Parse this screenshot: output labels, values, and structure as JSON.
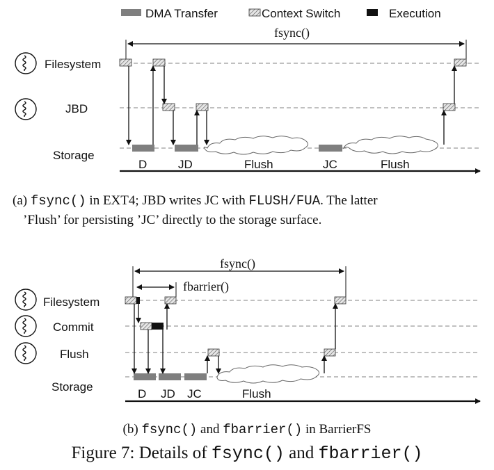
{
  "legend": {
    "dma": "DMA Transfer",
    "ctx": "Context Switch",
    "exec": "Execution"
  },
  "colors": {
    "dma": "#7f7f7f",
    "exec": "#111111",
    "ctx_fill": "#d9d9d9",
    "dashed": "#9a9a9a"
  },
  "diagram_a": {
    "span_label": "fsync()",
    "rows": [
      "Filesystem",
      "JBD",
      "Storage"
    ],
    "timeline_labels": [
      "D",
      "JD",
      "Flush",
      "JC",
      "Flush"
    ]
  },
  "caption_a": {
    "prefix": "(a) ",
    "code1": "fsync()",
    "mid": " in EXT4; JBD writes JC with ",
    "code2": "FLUSH/FUA",
    "suffix": ". The latter",
    "line2": "’Flush’ for persisting ’JC’ directly to the storage surface."
  },
  "diagram_b": {
    "span_label": "fsync()",
    "inner_span_label": "fbarrier()",
    "rows": [
      "Filesystem",
      "Commit",
      "Flush",
      "Storage"
    ],
    "timeline_labels": [
      "D",
      "JD",
      "JC",
      "Flush"
    ]
  },
  "caption_b": {
    "prefix": "(b) ",
    "code1": "fsync()",
    "mid": " and ",
    "code2": "fbarrier()",
    "suffix": " in BarrierFS"
  },
  "figure_caption": {
    "prefix": "Figure 7: Details of ",
    "code1": "fsync()",
    "mid": " and ",
    "code2": "fbarrier()"
  },
  "icons": [
    "thread-icon"
  ]
}
